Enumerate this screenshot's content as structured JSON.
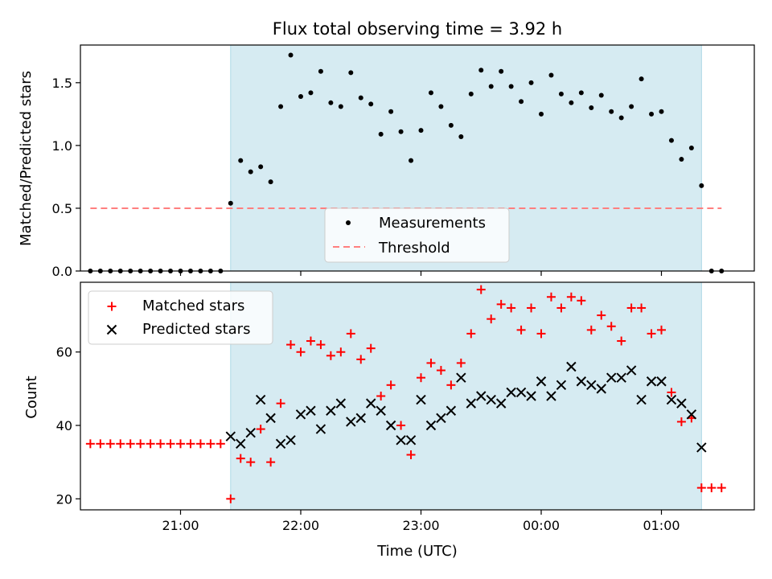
{
  "chart_data": {
    "type": "scatter",
    "title": "Flux total observing time = 3.92 h",
    "xlabel": "Time (UTC)",
    "x_ticks": [
      "21:00",
      "22:00",
      "23:00",
      "00:00",
      "01:00"
    ],
    "shaded_interval": [
      "21:25",
      "01:20"
    ],
    "colors": {
      "shade": "#add8e6",
      "measure": "#000000",
      "threshold": "#ff7f7f",
      "matched": "#ff0000",
      "predicted": "#000000"
    },
    "top": {
      "ylabel": "Matched/Predicted stars",
      "ylim": [
        0,
        1.8
      ],
      "y_ticks": [
        "0.0",
        "0.5",
        "1.0",
        "1.5"
      ],
      "threshold": 0.5,
      "threshold_range": [
        "20:15",
        "01:30"
      ],
      "legend": [
        "Measurements",
        "Threshold"
      ],
      "points": [
        [
          "20:15",
          0
        ],
        [
          "20:20",
          0
        ],
        [
          "20:25",
          0
        ],
        [
          "20:30",
          0
        ],
        [
          "20:35",
          0
        ],
        [
          "20:40",
          0
        ],
        [
          "20:45",
          0
        ],
        [
          "20:50",
          0
        ],
        [
          "20:55",
          0
        ],
        [
          "21:00",
          0
        ],
        [
          "21:05",
          0
        ],
        [
          "21:10",
          0
        ],
        [
          "21:15",
          0
        ],
        [
          "21:20",
          0
        ],
        [
          "21:25",
          0.54
        ],
        [
          "21:30",
          0.88
        ],
        [
          "21:35",
          0.79
        ],
        [
          "21:40",
          0.83
        ],
        [
          "21:45",
          0.71
        ],
        [
          "21:50",
          1.31
        ],
        [
          "21:55",
          1.72
        ],
        [
          "22:00",
          1.39
        ],
        [
          "22:05",
          1.42
        ],
        [
          "22:10",
          1.59
        ],
        [
          "22:15",
          1.34
        ],
        [
          "22:20",
          1.31
        ],
        [
          "22:25",
          1.58
        ],
        [
          "22:30",
          1.38
        ],
        [
          "22:35",
          1.33
        ],
        [
          "22:40",
          1.09
        ],
        [
          "22:45",
          1.27
        ],
        [
          "22:50",
          1.11
        ],
        [
          "22:55",
          0.88
        ],
        [
          "23:00",
          1.12
        ],
        [
          "23:05",
          1.42
        ],
        [
          "23:10",
          1.31
        ],
        [
          "23:15",
          1.16
        ],
        [
          "23:20",
          1.07
        ],
        [
          "23:25",
          1.41
        ],
        [
          "23:30",
          1.6
        ],
        [
          "23:35",
          1.47
        ],
        [
          "23:40",
          1.59
        ],
        [
          "23:45",
          1.47
        ],
        [
          "23:50",
          1.35
        ],
        [
          "23:55",
          1.5
        ],
        [
          "00:00",
          1.25
        ],
        [
          "00:05",
          1.56
        ],
        [
          "00:10",
          1.41
        ],
        [
          "00:15",
          1.34
        ],
        [
          "00:20",
          1.42
        ],
        [
          "00:25",
          1.3
        ],
        [
          "00:30",
          1.4
        ],
        [
          "00:35",
          1.27
        ],
        [
          "00:40",
          1.22
        ],
        [
          "00:45",
          1.31
        ],
        [
          "00:50",
          1.53
        ],
        [
          "00:55",
          1.25
        ],
        [
          "01:00",
          1.27
        ],
        [
          "01:05",
          1.04
        ],
        [
          "01:10",
          0.89
        ],
        [
          "01:15",
          0.98
        ],
        [
          "01:20",
          0.68
        ],
        [
          "01:25",
          0
        ],
        [
          "01:30",
          0
        ]
      ]
    },
    "bottom": {
      "ylabel": "Count",
      "ylim": [
        17,
        79
      ],
      "y_ticks": [
        "20",
        "40",
        "60"
      ],
      "legend": [
        "Matched stars",
        "Predicted stars"
      ],
      "matched": [
        [
          "20:15",
          35
        ],
        [
          "20:20",
          35
        ],
        [
          "20:25",
          35
        ],
        [
          "20:30",
          35
        ],
        [
          "20:35",
          35
        ],
        [
          "20:40",
          35
        ],
        [
          "20:45",
          35
        ],
        [
          "20:50",
          35
        ],
        [
          "20:55",
          35
        ],
        [
          "21:00",
          35
        ],
        [
          "21:05",
          35
        ],
        [
          "21:10",
          35
        ],
        [
          "21:15",
          35
        ],
        [
          "21:20",
          35
        ],
        [
          "21:25",
          20
        ],
        [
          "21:30",
          31
        ],
        [
          "21:35",
          30
        ],
        [
          "21:40",
          39
        ],
        [
          "21:45",
          30
        ],
        [
          "21:50",
          46
        ],
        [
          "21:55",
          62
        ],
        [
          "22:00",
          60
        ],
        [
          "22:05",
          63
        ],
        [
          "22:10",
          62
        ],
        [
          "22:15",
          59
        ],
        [
          "22:20",
          60
        ],
        [
          "22:25",
          65
        ],
        [
          "22:30",
          58
        ],
        [
          "22:35",
          61
        ],
        [
          "22:40",
          48
        ],
        [
          "22:45",
          51
        ],
        [
          "22:50",
          40
        ],
        [
          "22:55",
          32
        ],
        [
          "23:00",
          53
        ],
        [
          "23:05",
          57
        ],
        [
          "23:10",
          55
        ],
        [
          "23:15",
          51
        ],
        [
          "23:20",
          57
        ],
        [
          "23:25",
          65
        ],
        [
          "23:30",
          77
        ],
        [
          "23:35",
          69
        ],
        [
          "23:40",
          73
        ],
        [
          "23:45",
          72
        ],
        [
          "23:50",
          66
        ],
        [
          "23:55",
          72
        ],
        [
          "00:00",
          65
        ],
        [
          "00:05",
          75
        ],
        [
          "00:10",
          72
        ],
        [
          "00:15",
          75
        ],
        [
          "00:20",
          74
        ],
        [
          "00:25",
          66
        ],
        [
          "00:30",
          70
        ],
        [
          "00:35",
          67
        ],
        [
          "00:40",
          63
        ],
        [
          "00:45",
          72
        ],
        [
          "00:50",
          72
        ],
        [
          "00:55",
          65
        ],
        [
          "01:00",
          66
        ],
        [
          "01:05",
          49
        ],
        [
          "01:10",
          41
        ],
        [
          "01:15",
          42
        ],
        [
          "01:20",
          23
        ],
        [
          "01:25",
          23
        ],
        [
          "01:30",
          23
        ]
      ],
      "predicted": [
        [
          "21:25",
          37
        ],
        [
          "21:30",
          35
        ],
        [
          "21:35",
          38
        ],
        [
          "21:40",
          47
        ],
        [
          "21:45",
          42
        ],
        [
          "21:50",
          35
        ],
        [
          "21:55",
          36
        ],
        [
          "22:00",
          43
        ],
        [
          "22:05",
          44
        ],
        [
          "22:10",
          39
        ],
        [
          "22:15",
          44
        ],
        [
          "22:20",
          46
        ],
        [
          "22:25",
          41
        ],
        [
          "22:30",
          42
        ],
        [
          "22:35",
          46
        ],
        [
          "22:40",
          44
        ],
        [
          "22:45",
          40
        ],
        [
          "22:50",
          36
        ],
        [
          "22:55",
          36
        ],
        [
          "23:00",
          47
        ],
        [
          "23:05",
          40
        ],
        [
          "23:10",
          42
        ],
        [
          "23:15",
          44
        ],
        [
          "23:20",
          53
        ],
        [
          "23:25",
          46
        ],
        [
          "23:30",
          48
        ],
        [
          "23:35",
          47
        ],
        [
          "23:40",
          46
        ],
        [
          "23:45",
          49
        ],
        [
          "23:50",
          49
        ],
        [
          "23:55",
          48
        ],
        [
          "00:00",
          52
        ],
        [
          "00:05",
          48
        ],
        [
          "00:10",
          51
        ],
        [
          "00:15",
          56
        ],
        [
          "00:20",
          52
        ],
        [
          "00:25",
          51
        ],
        [
          "00:30",
          50
        ],
        [
          "00:35",
          53
        ],
        [
          "00:40",
          53
        ],
        [
          "00:45",
          55
        ],
        [
          "00:50",
          47
        ],
        [
          "00:55",
          52
        ],
        [
          "01:00",
          52
        ],
        [
          "01:05",
          47
        ],
        [
          "01:10",
          46
        ],
        [
          "01:15",
          43
        ],
        [
          "01:20",
          34
        ]
      ]
    }
  }
}
